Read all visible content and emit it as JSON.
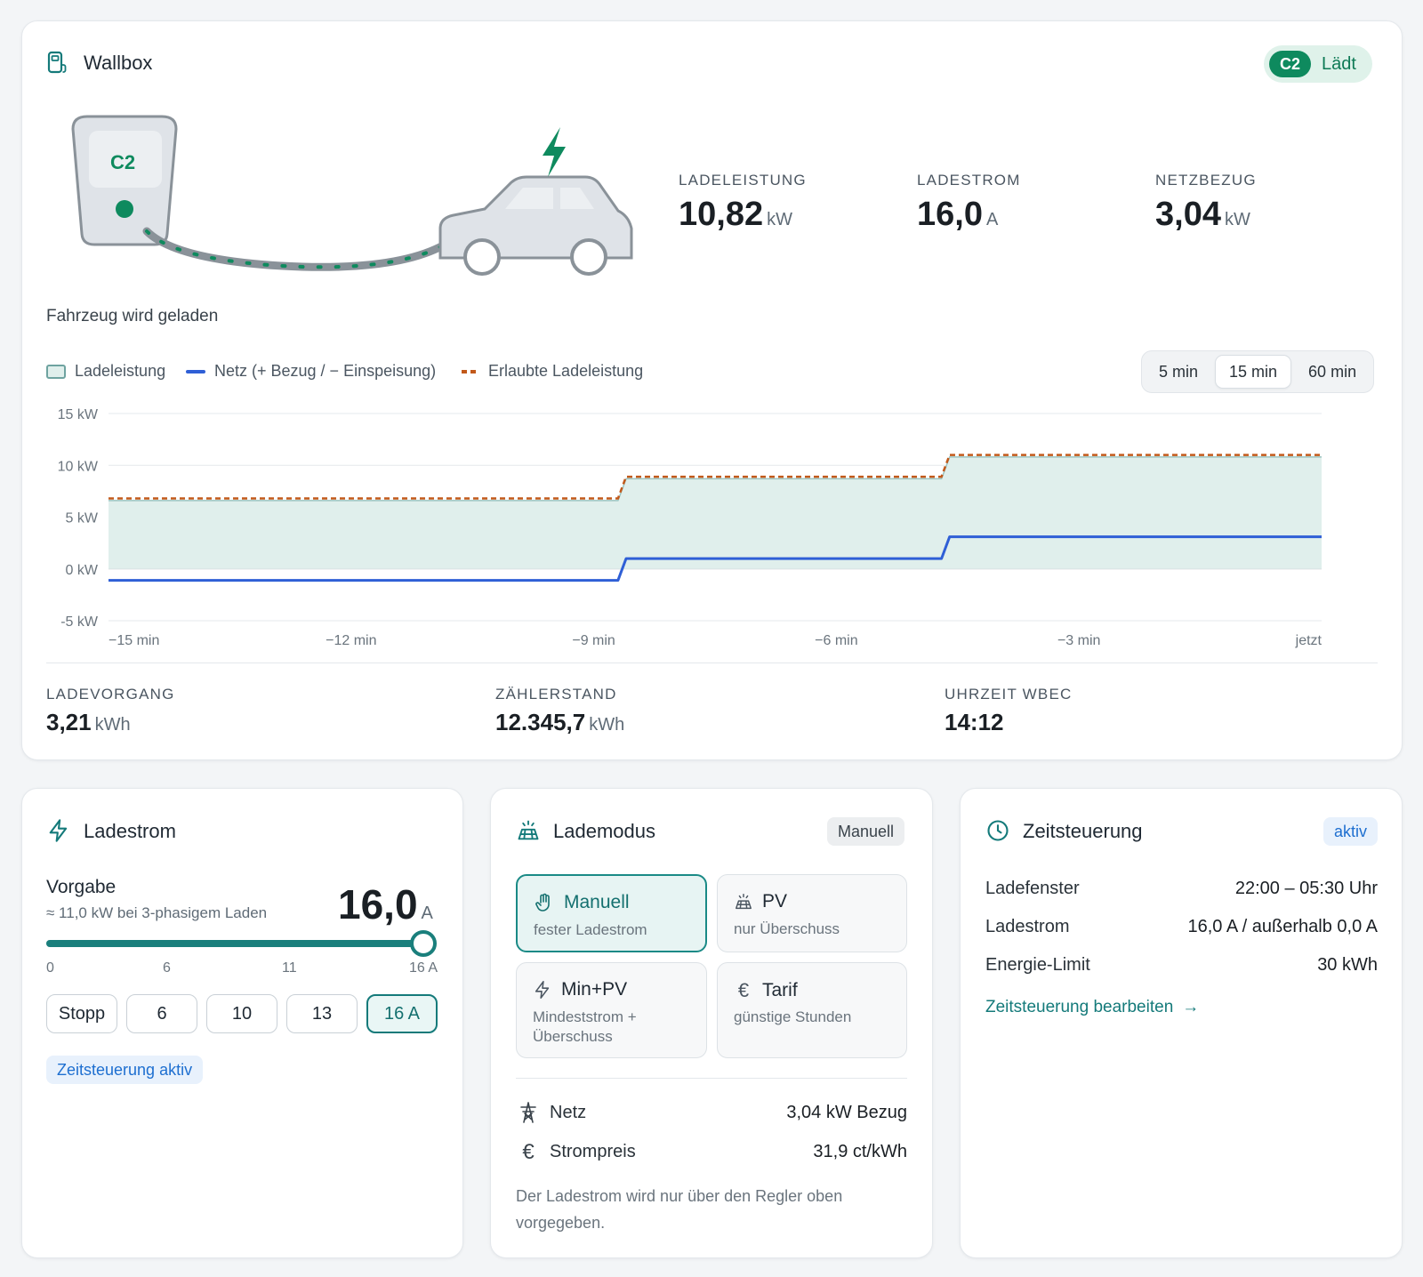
{
  "wallbox": {
    "title": "Wallbox",
    "status_badge": "C2",
    "status_text": "Lädt",
    "device_label": "C2",
    "caption": "Fahrzeug wird geladen",
    "metrics": [
      {
        "label": "LADELEISTUNG",
        "value": "10,82",
        "unit": "kW"
      },
      {
        "label": "LADESTROM",
        "value": "16,0",
        "unit": "A"
      },
      {
        "label": "NETZBEZUG",
        "value": "3,04",
        "unit": "kW"
      }
    ],
    "legend": [
      "Ladeleistung",
      "Netz (+ Bezug / − Einspeisung)",
      "Erlaubte Ladeleistung"
    ],
    "ranges": [
      "5 min",
      "15 min",
      "60 min"
    ],
    "active_range": "15 min",
    "footer": [
      {
        "label": "LADEVORGANG",
        "value": "3,21",
        "unit": "kWh"
      },
      {
        "label": "ZÄHLERSTAND",
        "value": "12.345,7",
        "unit": "kWh"
      },
      {
        "label": "UHRZEIT WBEC",
        "value": "14:12",
        "unit": ""
      }
    ]
  },
  "chart_data": {
    "type": "line",
    "y_ticks": [
      "15 kW",
      "10 kW",
      "5 kW",
      "0 kW",
      "-5 kW"
    ],
    "x_ticks": [
      "−15 min",
      "−12 min",
      "−9 min",
      "−6 min",
      "−3 min",
      "jetzt"
    ],
    "ylim": [
      -5,
      15
    ],
    "xlim": [
      -15,
      0
    ],
    "grid": true,
    "legend_position": "top-left",
    "series": [
      {
        "name": "Ladeleistung",
        "kind": "area",
        "color": "#e0efec",
        "points": [
          [
            -15,
            6.6
          ],
          [
            -8.7,
            6.6
          ],
          [
            -8.6,
            8.7
          ],
          [
            -4.7,
            8.7
          ],
          [
            -4.6,
            10.8
          ],
          [
            0,
            10.8
          ]
        ]
      },
      {
        "name": "Netz (+ Bezug / − Einspeisung)",
        "kind": "line",
        "color": "#2f5fd6",
        "points": [
          [
            -15,
            -1.1
          ],
          [
            -8.7,
            -1.1
          ],
          [
            -8.6,
            1.0
          ],
          [
            -4.7,
            1.0
          ],
          [
            -4.6,
            3.1
          ],
          [
            0,
            3.1
          ]
        ]
      },
      {
        "name": "Erlaubte Ladeleistung",
        "kind": "dashed",
        "color": "#c2591a",
        "points": [
          [
            -15,
            6.8
          ],
          [
            -8.7,
            6.8
          ],
          [
            -8.6,
            8.9
          ],
          [
            -4.7,
            8.9
          ],
          [
            -4.6,
            11.0
          ],
          [
            0,
            11.0
          ]
        ]
      }
    ]
  },
  "ladestrom": {
    "title": "Ladestrom",
    "vorgabe_label": "Vorgabe",
    "vorgabe_hint": "≈ 11,0 kW bei 3-phasigem Laden",
    "value": "16,0",
    "unit": "A",
    "slider_fraction": 1.0,
    "slider_ticks": [
      "0",
      "6",
      "11",
      "16 A"
    ],
    "presets": [
      "Stopp",
      "6",
      "10",
      "13",
      "16 A"
    ],
    "active_preset": "16 A",
    "tag": "Zeitsteuerung aktiv"
  },
  "lademodus": {
    "title": "Lademodus",
    "badge": "Manuell",
    "modes": [
      {
        "title": "Manuell",
        "sub": "fester Ladestrom",
        "icon": "hand-icon"
      },
      {
        "title": "PV",
        "sub": "nur Überschuss",
        "icon": "solar-panel-icon"
      },
      {
        "title": "Min+PV",
        "sub": "Mindeststrom + Überschuss",
        "icon": "bolt-icon"
      },
      {
        "title": "Tarif",
        "sub": "günstige Stunden",
        "icon": "euro-icon"
      }
    ],
    "active_mode": "Manuell",
    "netz_label": "Netz",
    "netz_value": "3,04 kW Bezug",
    "preis_label": "Strompreis",
    "preis_value": "31,9 ct/kWh",
    "note": "Der Ladestrom wird nur über den Regler oben vorgegeben."
  },
  "zeitsteuerung": {
    "title": "Zeitsteuerung",
    "badge": "aktiv",
    "rows": [
      {
        "label": "Ladefenster",
        "value": "22:00 – 05:30 Uhr"
      },
      {
        "label": "Ladestrom",
        "value": "16,0 A / außerhalb 0,0 A"
      },
      {
        "label": "Energie-Limit",
        "value": "30 kWh"
      }
    ],
    "link": "Zeitsteuerung bearbeiten"
  },
  "colors": {
    "accent": "#147a7a",
    "green": "#0e8a5e",
    "grid_line": "#2f5fd6",
    "limit": "#c2591a"
  }
}
